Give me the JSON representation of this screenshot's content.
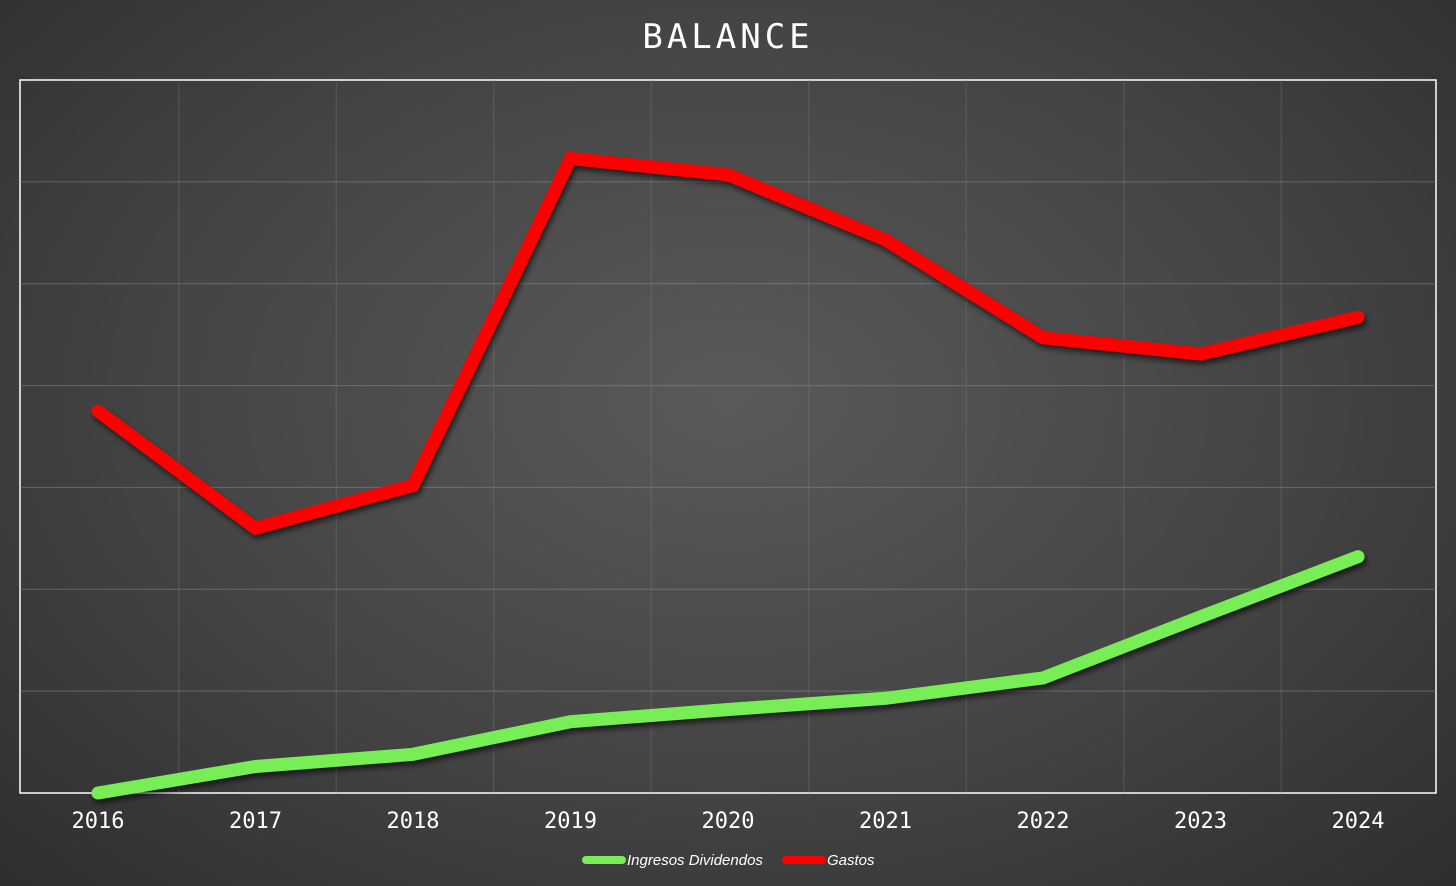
{
  "chart_data": {
    "type": "line",
    "title": "BALANCE",
    "xlabel": "",
    "ylabel": "",
    "categories": [
      "2016",
      "2017",
      "2018",
      "2019",
      "2020",
      "2021",
      "2022",
      "2023",
      "2024"
    ],
    "ylim": [
      0,
      7
    ],
    "grid": true,
    "legend_position": "bottom",
    "series": [
      {
        "name": "Ingresos Dividendos",
        "color": "#77ee55",
        "values": [
          0.0,
          0.26,
          0.38,
          0.7,
          0.82,
          0.93,
          1.13,
          1.73,
          2.32
        ]
      },
      {
        "name": "Gastos",
        "color": "#ff0000",
        "values": [
          3.75,
          2.6,
          3.02,
          6.23,
          6.07,
          5.43,
          4.47,
          4.31,
          4.67
        ]
      }
    ]
  }
}
